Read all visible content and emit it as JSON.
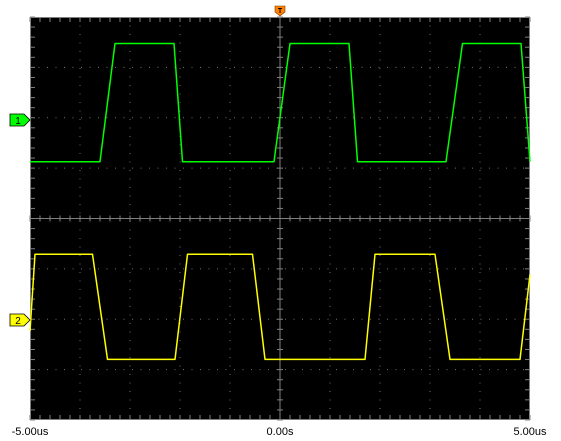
{
  "chart_data": {
    "type": "line",
    "grid": true,
    "x_unit": "us",
    "xlim": [
      -5.0,
      5.0
    ],
    "x_tick_labels": [
      "-5.00us",
      "0.00s",
      "5.00us"
    ],
    "divisions": {
      "horizontal": 10,
      "vertical": 8
    },
    "trigger_marker": "T",
    "channels": [
      {
        "id": "ch1",
        "marker_label": "1",
        "color": "#00ff00",
        "waveform": "square",
        "points": [
          [
            -5.0,
            0.05
          ],
          [
            -3.6,
            0.05
          ],
          [
            -3.3,
            0.98
          ],
          [
            -2.12,
            0.98
          ],
          [
            -1.95,
            0.05
          ],
          [
            -0.12,
            0.05
          ],
          [
            0.2,
            0.98
          ],
          [
            1.38,
            0.98
          ],
          [
            1.55,
            0.05
          ],
          [
            3.32,
            0.05
          ],
          [
            3.65,
            0.98
          ],
          [
            4.82,
            0.98
          ],
          [
            5.0,
            0.05
          ]
        ]
      },
      {
        "id": "ch2",
        "marker_label": "2",
        "color": "#ffff00",
        "waveform": "square",
        "points": [
          [
            -5.0,
            0.3
          ],
          [
            -4.9,
            0.98
          ],
          [
            -3.75,
            0.98
          ],
          [
            -3.45,
            0.05
          ],
          [
            -2.1,
            0.05
          ],
          [
            -1.85,
            0.98
          ],
          [
            -0.55,
            0.98
          ],
          [
            -0.3,
            0.05
          ],
          [
            1.7,
            0.05
          ],
          [
            1.9,
            0.98
          ],
          [
            3.1,
            0.98
          ],
          [
            3.4,
            0.05
          ],
          [
            4.8,
            0.05
          ],
          [
            5.0,
            0.8
          ]
        ]
      }
    ]
  }
}
